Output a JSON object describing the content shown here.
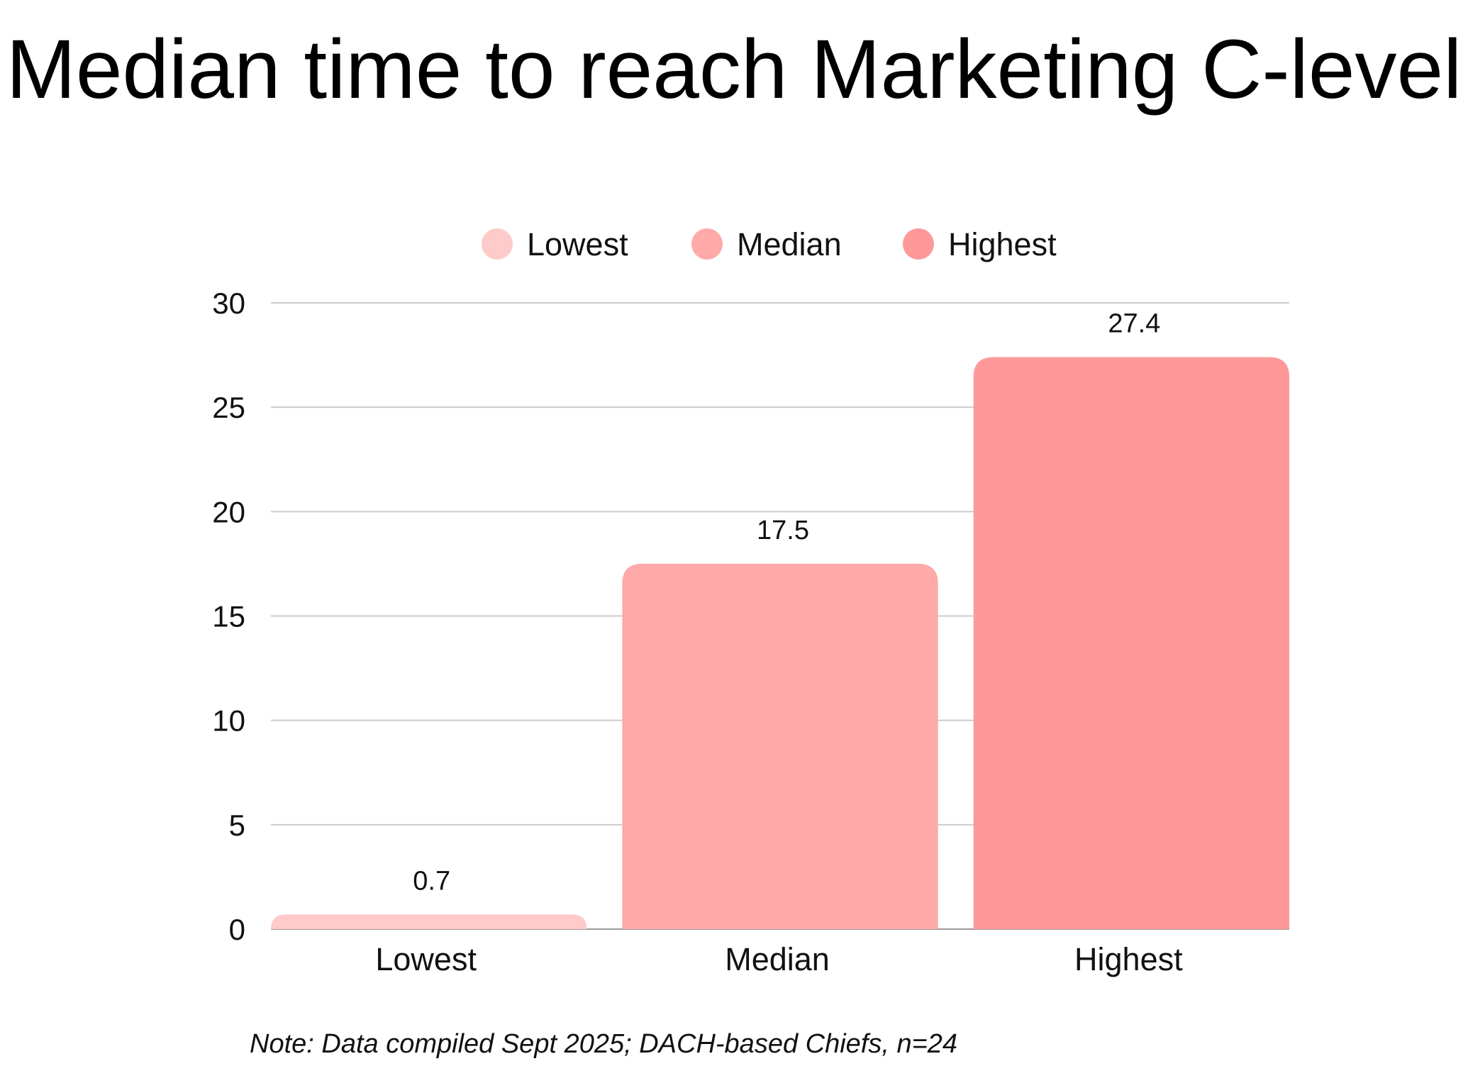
{
  "chart_data": {
    "type": "bar",
    "title": "Median time to reach Marketing C-level",
    "categories": [
      "Lowest",
      "Median",
      "Highest"
    ],
    "values": [
      0.7,
      17.5,
      27.4
    ],
    "data_labels": [
      "0.7",
      "17.5",
      "27.4"
    ],
    "colors": [
      "#FFCACA",
      "#FFA9A9",
      "#FF9999"
    ],
    "legend": {
      "placement": "top-center",
      "entries": [
        "Lowest",
        "Median",
        "Highest"
      ]
    },
    "y_ticks": [
      "0",
      "5",
      "10",
      "15",
      "20",
      "25",
      "30"
    ],
    "ylim": [
      0,
      30
    ],
    "grid": true,
    "xlabel": "",
    "ylabel": ""
  },
  "note": "Note: Data compiled Sept 2025; DACH-based Chiefs, n=24"
}
